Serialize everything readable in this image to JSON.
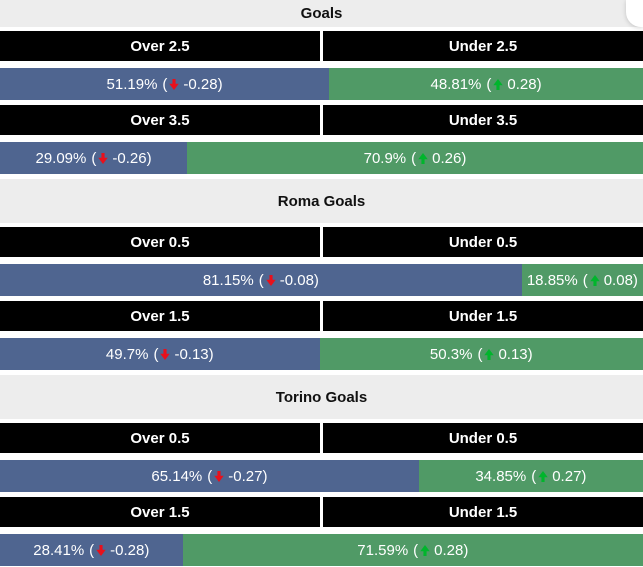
{
  "labels": {
    "open_paren": "(",
    "close_paren": ")"
  },
  "colors": {
    "over_bg": "#4f6590",
    "under_bg": "#509a66",
    "header_bg": "#000000",
    "header_text": "#ffffff",
    "bar_text": "#ffffff",
    "title_text": "#111111",
    "down_arrow": "#e8101c",
    "up_arrow": "#00b52c",
    "band_bg": "#ededed",
    "page_bg": "#ffffff"
  },
  "sections": [
    {
      "title": "Goals",
      "markets": [
        {
          "over_label": "Over 2.5",
          "under_label": "Under 2.5",
          "over": {
            "pct": 51.19,
            "pct_label": "51.19%",
            "trend": "down",
            "delta_label": "-0.28"
          },
          "under": {
            "pct": 48.81,
            "pct_label": "48.81%",
            "trend": "up",
            "delta_label": "0.28"
          }
        },
        {
          "over_label": "Over 3.5",
          "under_label": "Under 3.5",
          "over": {
            "pct": 29.09,
            "pct_label": "29.09%",
            "trend": "down",
            "delta_label": "-0.26"
          },
          "under": {
            "pct": 70.9,
            "pct_label": "70.9%",
            "trend": "up",
            "delta_label": "0.26"
          }
        }
      ]
    },
    {
      "title": "Roma Goals",
      "markets": [
        {
          "over_label": "Over 0.5",
          "under_label": "Under 0.5",
          "over": {
            "pct": 81.15,
            "pct_label": "81.15%",
            "trend": "down",
            "delta_label": "-0.08"
          },
          "under": {
            "pct": 18.85,
            "pct_label": "18.85%",
            "trend": "up",
            "delta_label": "0.08"
          }
        },
        {
          "over_label": "Over 1.5",
          "under_label": "Under 1.5",
          "over": {
            "pct": 49.7,
            "pct_label": "49.7%",
            "trend": "down",
            "delta_label": "-0.13"
          },
          "under": {
            "pct": 50.3,
            "pct_label": "50.3%",
            "trend": "up",
            "delta_label": "0.13"
          }
        }
      ]
    },
    {
      "title": "Torino Goals",
      "markets": [
        {
          "over_label": "Over 0.5",
          "under_label": "Under 0.5",
          "over": {
            "pct": 65.14,
            "pct_label": "65.14%",
            "trend": "down",
            "delta_label": "-0.27"
          },
          "under": {
            "pct": 34.85,
            "pct_label": "34.85%",
            "trend": "up",
            "delta_label": "0.27"
          }
        },
        {
          "over_label": "Over 1.5",
          "under_label": "Under 1.5",
          "over": {
            "pct": 28.41,
            "pct_label": "28.41%",
            "trend": "down",
            "delta_label": "-0.28"
          },
          "under": {
            "pct": 71.59,
            "pct_label": "71.59%",
            "trend": "up",
            "delta_label": "0.28"
          }
        }
      ]
    }
  ],
  "chart_data": [
    {
      "type": "bar",
      "title": "Goals",
      "categories": [
        "Over 2.5",
        "Under 2.5"
      ],
      "values": [
        51.19,
        48.81
      ],
      "deltas": [
        -0.28,
        0.28
      ]
    },
    {
      "type": "bar",
      "title": "Goals",
      "categories": [
        "Over 3.5",
        "Under 3.5"
      ],
      "values": [
        29.09,
        70.9
      ],
      "deltas": [
        -0.26,
        0.26
      ]
    },
    {
      "type": "bar",
      "title": "Roma Goals",
      "categories": [
        "Over 0.5",
        "Under 0.5"
      ],
      "values": [
        81.15,
        18.85
      ],
      "deltas": [
        -0.08,
        0.08
      ]
    },
    {
      "type": "bar",
      "title": "Roma Goals",
      "categories": [
        "Over 1.5",
        "Under 1.5"
      ],
      "values": [
        49.7,
        50.3
      ],
      "deltas": [
        -0.13,
        0.13
      ]
    },
    {
      "type": "bar",
      "title": "Torino Goals",
      "categories": [
        "Over 0.5",
        "Under 0.5"
      ],
      "values": [
        65.14,
        34.85
      ],
      "deltas": [
        -0.27,
        0.27
      ]
    },
    {
      "type": "bar",
      "title": "Torino Goals",
      "categories": [
        "Over 1.5",
        "Under 1.5"
      ],
      "values": [
        28.41,
        71.59
      ],
      "deltas": [
        -0.28,
        0.28
      ]
    }
  ]
}
